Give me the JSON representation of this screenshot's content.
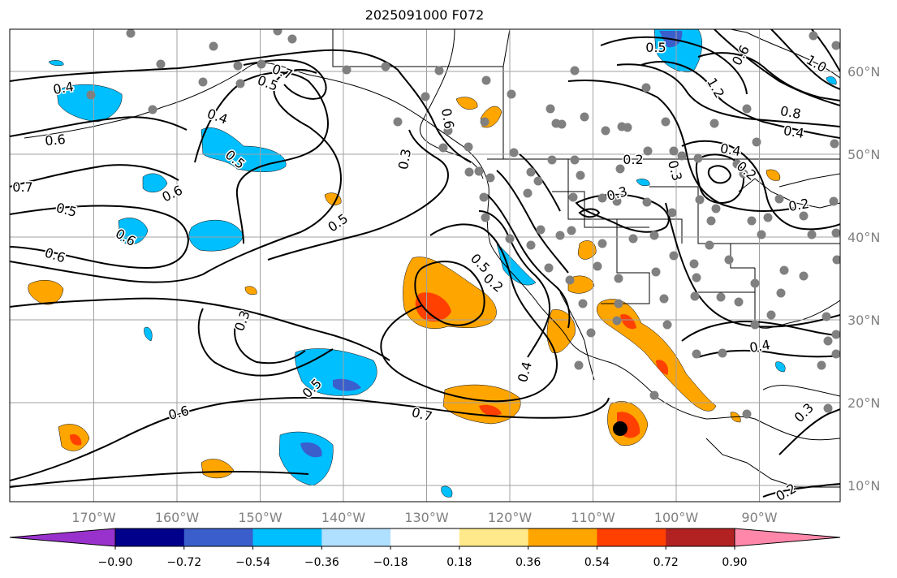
{
  "title": "2025091000 F072",
  "map": {
    "lon_ticks": [
      "170°W",
      "160°W",
      "150°W",
      "140°W",
      "130°W",
      "120°W",
      "110°W",
      "100°W",
      "90°W"
    ],
    "lat_ticks": [
      "10°N",
      "20°N",
      "30°N",
      "40°N",
      "50°N",
      "60°N"
    ],
    "lon_range": [
      -180,
      -80
    ],
    "lat_range": [
      8,
      65
    ],
    "grid": true,
    "contour_color": "#000000",
    "station_marker_color": "#808080",
    "contour_labels": [
      "0.4",
      "0.6",
      "0.7",
      "0.5",
      "0.6",
      "0.6",
      "0.7",
      "0.5",
      "0.4",
      "0.5",
      "0.6",
      "0.5",
      "0.3",
      "0.6",
      "0.3",
      "0.7",
      "0.6",
      "0.5",
      "0.4",
      "0.2",
      "0.5",
      "0.3",
      "0.4",
      "0.3",
      "0.2",
      "0.5",
      "0.6",
      "1.0",
      "1.2",
      "0.8",
      "0.4",
      "0.2",
      "0.4",
      "0.3",
      "0.2",
      "0.2"
    ],
    "low_center_marker": "filled-circle"
  },
  "colorbar": {
    "ticks": [
      "−0.90",
      "−0.72",
      "−0.54",
      "−0.36",
      "−0.18",
      "0.18",
      "0.36",
      "0.54",
      "0.72",
      "0.90"
    ],
    "colors": [
      "#9932cc",
      "#00008b",
      "#3a5fcd",
      "#00bfff",
      "#b0e0ff",
      "#ffffff",
      "#ffe98a",
      "#ffa500",
      "#ff4000",
      "#b22222",
      "#ff88aa"
    ],
    "extend": "both"
  }
}
